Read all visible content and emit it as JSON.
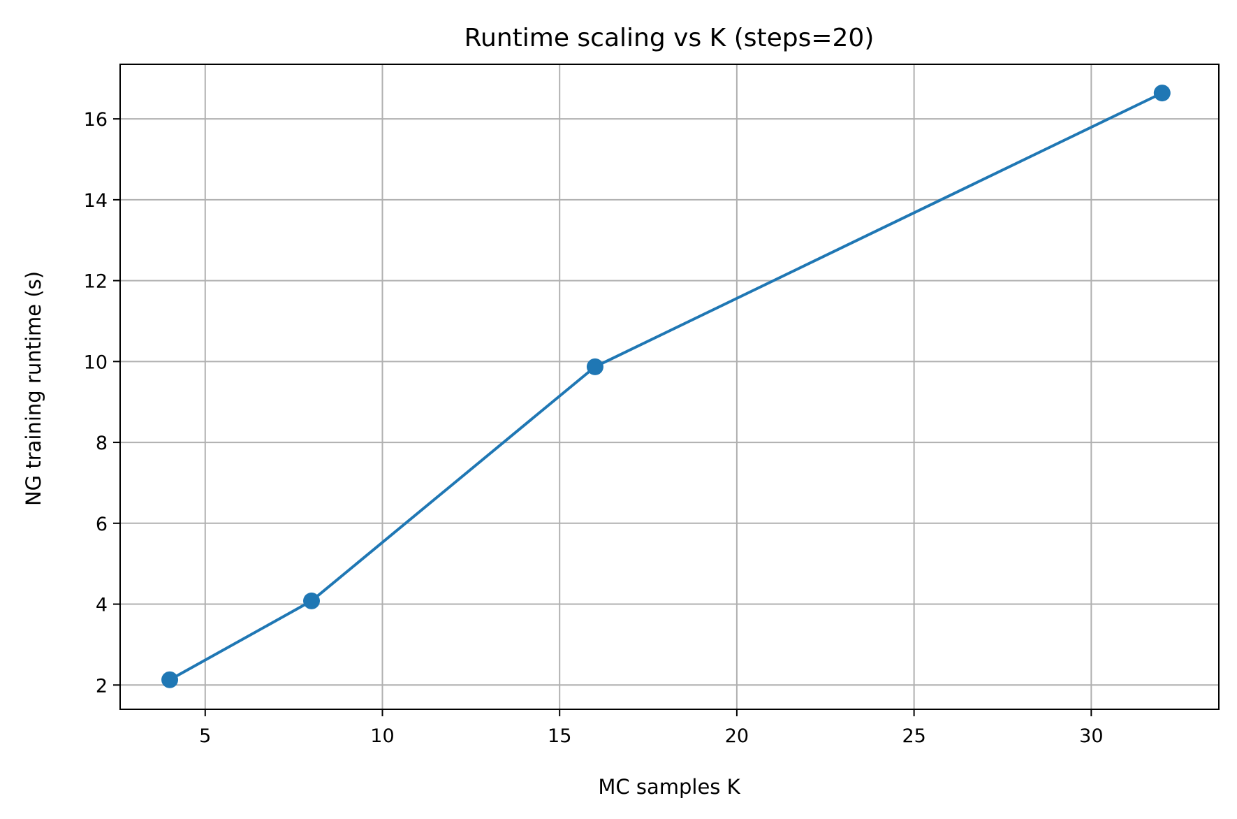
{
  "chart_data": {
    "type": "line",
    "title": "Runtime scaling vs K (steps=20)",
    "xlabel": "MC samples K",
    "ylabel": "NG training runtime (s)",
    "xlim": [
      2.6,
      33.6
    ],
    "ylim": [
      1.4,
      17.35
    ],
    "xticks": [
      5,
      10,
      15,
      20,
      25,
      30
    ],
    "yticks": [
      2,
      4,
      6,
      8,
      10,
      12,
      14,
      16
    ],
    "grid": true,
    "series": [
      {
        "x": [
          4,
          8,
          16,
          32
        ],
        "y": [
          2.13,
          4.08,
          9.87,
          16.64
        ],
        "color": "#1f77b4",
        "marker": "circle"
      }
    ]
  }
}
